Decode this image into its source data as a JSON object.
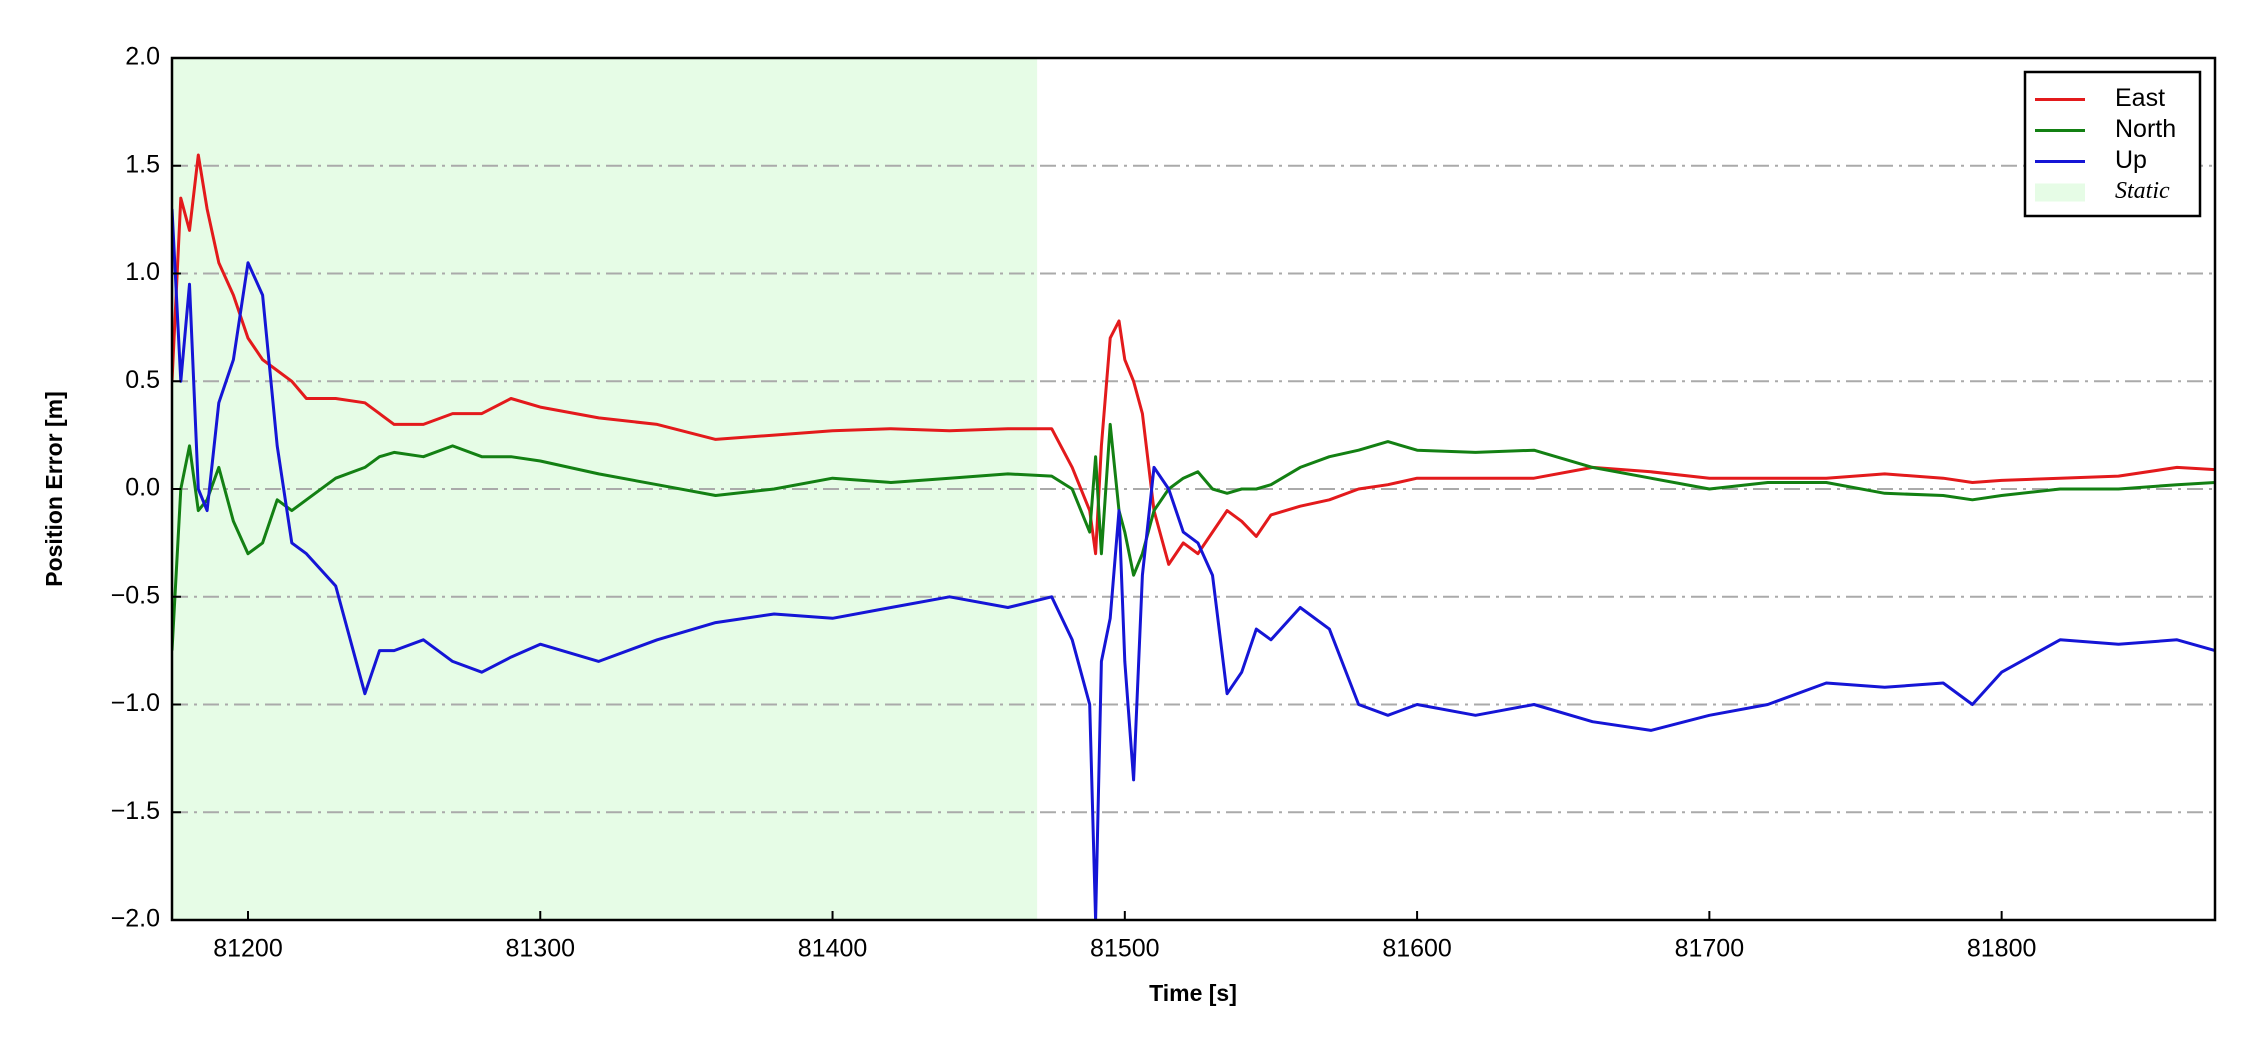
{
  "chart_data": {
    "type": "line",
    "xlabel": "Time [s]",
    "ylabel": "Position Error [m]",
    "x": [
      81174,
      81177,
      81180,
      81183,
      81186,
      81190,
      81195,
      81200,
      81205,
      81210,
      81215,
      81220,
      81230,
      81240,
      81245,
      81250,
      81260,
      81270,
      81280,
      81290,
      81300,
      81320,
      81340,
      81360,
      81380,
      81400,
      81420,
      81440,
      81460,
      81475,
      81482,
      81488,
      81490,
      81492,
      81495,
      81498,
      81500,
      81503,
      81506,
      81510,
      81515,
      81520,
      81525,
      81530,
      81535,
      81540,
      81545,
      81550,
      81560,
      81570,
      81580,
      81590,
      81600,
      81620,
      81640,
      81660,
      81680,
      81700,
      81720,
      81740,
      81760,
      81780,
      81790,
      81800,
      81820,
      81840,
      81860,
      81873
    ],
    "series": [
      {
        "name": "East",
        "color": "#e31a1c",
        "values": [
          0.5,
          1.35,
          1.2,
          1.55,
          1.3,
          1.05,
          0.9,
          0.7,
          0.6,
          0.55,
          0.5,
          0.42,
          0.42,
          0.4,
          0.35,
          0.3,
          0.3,
          0.35,
          0.35,
          0.42,
          0.38,
          0.33,
          0.3,
          0.23,
          0.25,
          0.27,
          0.28,
          0.27,
          0.28,
          0.28,
          0.1,
          -0.1,
          -0.3,
          0.2,
          0.7,
          0.78,
          0.6,
          0.5,
          0.35,
          -0.1,
          -0.35,
          -0.25,
          -0.3,
          -0.2,
          -0.1,
          -0.15,
          -0.22,
          -0.12,
          -0.08,
          -0.05,
          0.0,
          0.02,
          0.05,
          0.05,
          0.05,
          0.1,
          0.08,
          0.05,
          0.05,
          0.05,
          0.07,
          0.05,
          0.03,
          0.04,
          0.05,
          0.06,
          0.1,
          0.09
        ]
      },
      {
        "name": "North",
        "color": "#138013",
        "values": [
          -0.75,
          0.0,
          0.2,
          -0.1,
          -0.05,
          0.1,
          -0.15,
          -0.3,
          -0.25,
          -0.05,
          -0.1,
          -0.05,
          0.05,
          0.1,
          0.15,
          0.17,
          0.15,
          0.2,
          0.15,
          0.15,
          0.13,
          0.07,
          0.02,
          -0.03,
          0.0,
          0.05,
          0.03,
          0.05,
          0.07,
          0.06,
          0.0,
          -0.2,
          0.15,
          -0.3,
          0.3,
          -0.1,
          -0.2,
          -0.4,
          -0.3,
          -0.1,
          0.0,
          0.05,
          0.08,
          0.0,
          -0.02,
          0.0,
          0.0,
          0.02,
          0.1,
          0.15,
          0.18,
          0.22,
          0.18,
          0.17,
          0.18,
          0.1,
          0.05,
          0.0,
          0.03,
          0.03,
          -0.02,
          -0.03,
          -0.05,
          -0.03,
          0.0,
          0.0,
          0.02,
          0.03
        ]
      },
      {
        "name": "Up",
        "color": "#1515d6",
        "values": [
          1.3,
          0.5,
          0.95,
          0.0,
          -0.1,
          0.4,
          0.6,
          1.05,
          0.9,
          0.2,
          -0.25,
          -0.3,
          -0.45,
          -0.95,
          -0.75,
          -0.75,
          -0.7,
          -0.8,
          -0.85,
          -0.78,
          -0.72,
          -0.8,
          -0.7,
          -0.62,
          -0.58,
          -0.6,
          -0.55,
          -0.5,
          -0.55,
          -0.5,
          -0.7,
          -1.0,
          -2.0,
          -0.8,
          -0.6,
          -0.1,
          -0.8,
          -1.35,
          -0.4,
          0.1,
          0.0,
          -0.2,
          -0.25,
          -0.4,
          -0.95,
          -0.85,
          -0.65,
          -0.7,
          -0.55,
          -0.65,
          -1.0,
          -1.05,
          -1.0,
          -1.05,
          -1.0,
          -1.08,
          -1.12,
          -1.05,
          -1.0,
          -0.9,
          -0.92,
          -0.9,
          -1.0,
          -0.85,
          -0.7,
          -0.72,
          -0.7,
          -0.75
        ]
      }
    ],
    "shaded_regions": [
      {
        "name": "Static",
        "xlim": [
          81174,
          81470
        ],
        "color": "#e6fce6"
      }
    ],
    "xlim": [
      81174,
      81873
    ],
    "xticks": [
      81200,
      81300,
      81400,
      81500,
      81600,
      81700,
      81800
    ],
    "ylim": [
      -2,
      2
    ],
    "yticks": [
      {
        "value": -2,
        "label": "−2.0"
      },
      {
        "value": -1.5,
        "label": "−1.5"
      },
      {
        "value": -1,
        "label": "−1.0"
      },
      {
        "value": -0.5,
        "label": "−0.5"
      },
      {
        "value": 0,
        "label": "0.0"
      },
      {
        "value": 0.5,
        "label": "0.5"
      },
      {
        "value": 1,
        "label": "1.0"
      },
      {
        "value": 1.5,
        "label": "1.5"
      },
      {
        "value": 2,
        "label": "2.0"
      }
    ],
    "grid": true,
    "legend": "upper right"
  }
}
